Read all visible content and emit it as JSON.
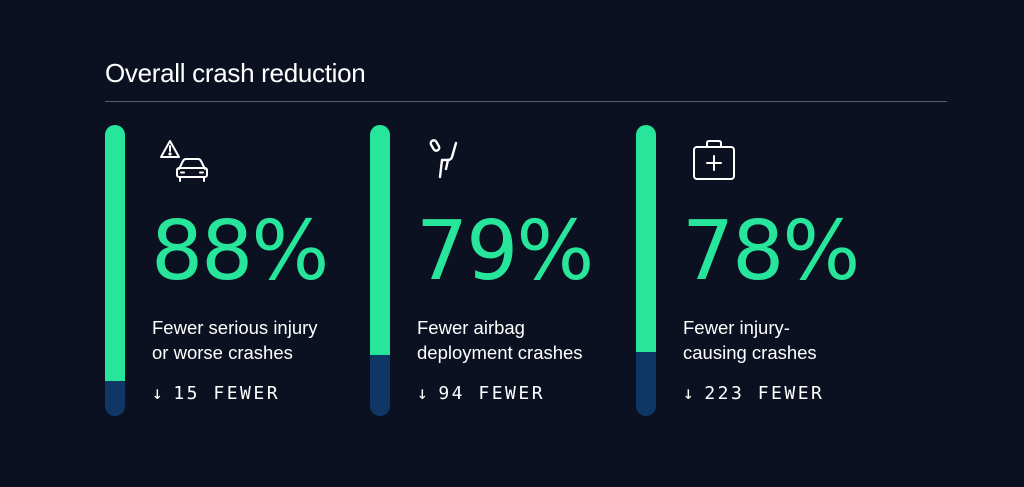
{
  "title": "Overall crash reduction",
  "colors": {
    "background": "#0c1121",
    "accent": "#27e59b",
    "bar_empty": "#0f3766",
    "text": "#ffffff"
  },
  "chart_data": {
    "type": "bar",
    "title": "Overall crash reduction",
    "unit": "%",
    "ylim": [
      0,
      100
    ],
    "categories": [
      "Fewer serious injury or worse crashes",
      "Fewer airbag deployment crashes",
      "Fewer injury-causing crashes"
    ],
    "values": [
      88,
      79,
      78
    ],
    "fewer_counts": [
      15,
      94,
      223
    ]
  },
  "cards": [
    {
      "icon": "car-warning-icon",
      "value": 88,
      "value_label": "88%",
      "desc_lines": [
        "Fewer serious injury",
        "or worse crashes"
      ],
      "arrow": "↓",
      "fewer_label": "15 FEWER"
    },
    {
      "icon": "airbag-seat-icon",
      "value": 79,
      "value_label": "79%",
      "desc_lines": [
        "Fewer airbag",
        "deployment crashes"
      ],
      "arrow": "↓",
      "fewer_label": "94 FEWER"
    },
    {
      "icon": "medical-kit-icon",
      "value": 78,
      "value_label": "78%",
      "desc_lines": [
        "Fewer injury-",
        "causing crashes"
      ],
      "arrow": "↓",
      "fewer_label": "223 FEWER"
    }
  ]
}
